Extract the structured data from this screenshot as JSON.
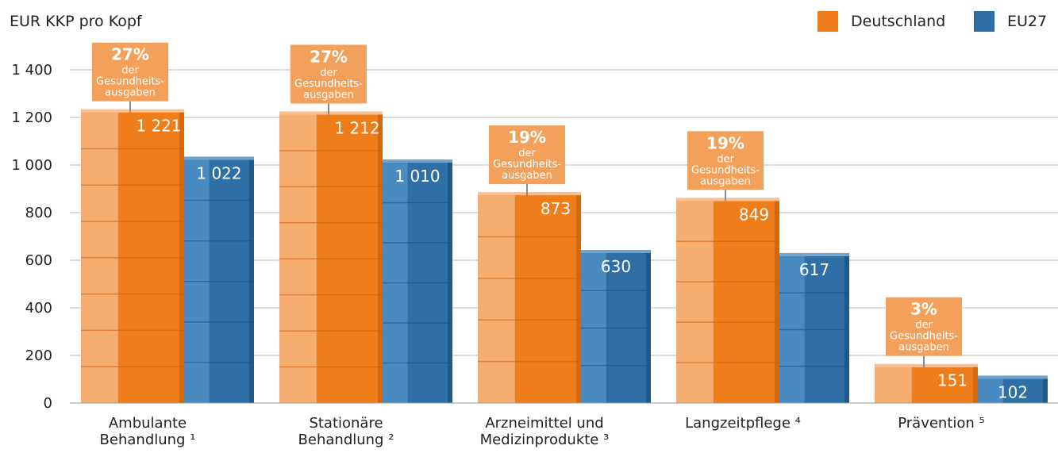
{
  "chart_data": {
    "type": "bar",
    "ylabel": "EUR KKP pro Kopf",
    "ylim": [
      0,
      1400
    ],
    "yticks": [
      0,
      200,
      400,
      600,
      800,
      1000,
      1200,
      1400
    ],
    "ytick_labels": [
      "0",
      "200",
      "400",
      "600",
      "800",
      "1 000",
      "1 200",
      "1 400"
    ],
    "grid": true,
    "legend_position": "top-right",
    "categories": [
      {
        "line1": "Ambulante",
        "line2": "Behandlung ¹"
      },
      {
        "line1": "Stationäre",
        "line2": "Behandlung ²"
      },
      {
        "line1": "Arzneimittel und",
        "line2": "Medizinprodukte ³"
      },
      {
        "line1": "Langzeitpflege ⁴",
        "line2": ""
      },
      {
        "line1": "Prävention ⁵",
        "line2": ""
      }
    ],
    "series": [
      {
        "name": "Deutschland",
        "color": "#ef7d1a",
        "values": [
          1221,
          1212,
          873,
          849,
          151
        ],
        "value_labels": [
          "1 221",
          "1 212",
          "873",
          "849",
          "151"
        ]
      },
      {
        "name": "EU27",
        "color": "#2e6fa7",
        "values": [
          1022,
          1010,
          630,
          617,
          102
        ],
        "value_labels": [
          "1 022",
          "1 010",
          "630",
          "617",
          "102"
        ]
      }
    ],
    "annotations": [
      {
        "percent": "27%",
        "line1": "der",
        "line2": "Gesundheits-",
        "line3": "ausgaben"
      },
      {
        "percent": "27%",
        "line1": "der",
        "line2": "Gesundheits-",
        "line3": "ausgaben"
      },
      {
        "percent": "19%",
        "line1": "der",
        "line2": "Gesundheits-",
        "line3": "ausgaben"
      },
      {
        "percent": "19%",
        "line1": "der",
        "line2": "Gesundheits-",
        "line3": "ausgaben"
      },
      {
        "percent": "3%",
        "line1": "der",
        "line2": "Gesundheits-",
        "line3": "ausgaben"
      }
    ]
  }
}
